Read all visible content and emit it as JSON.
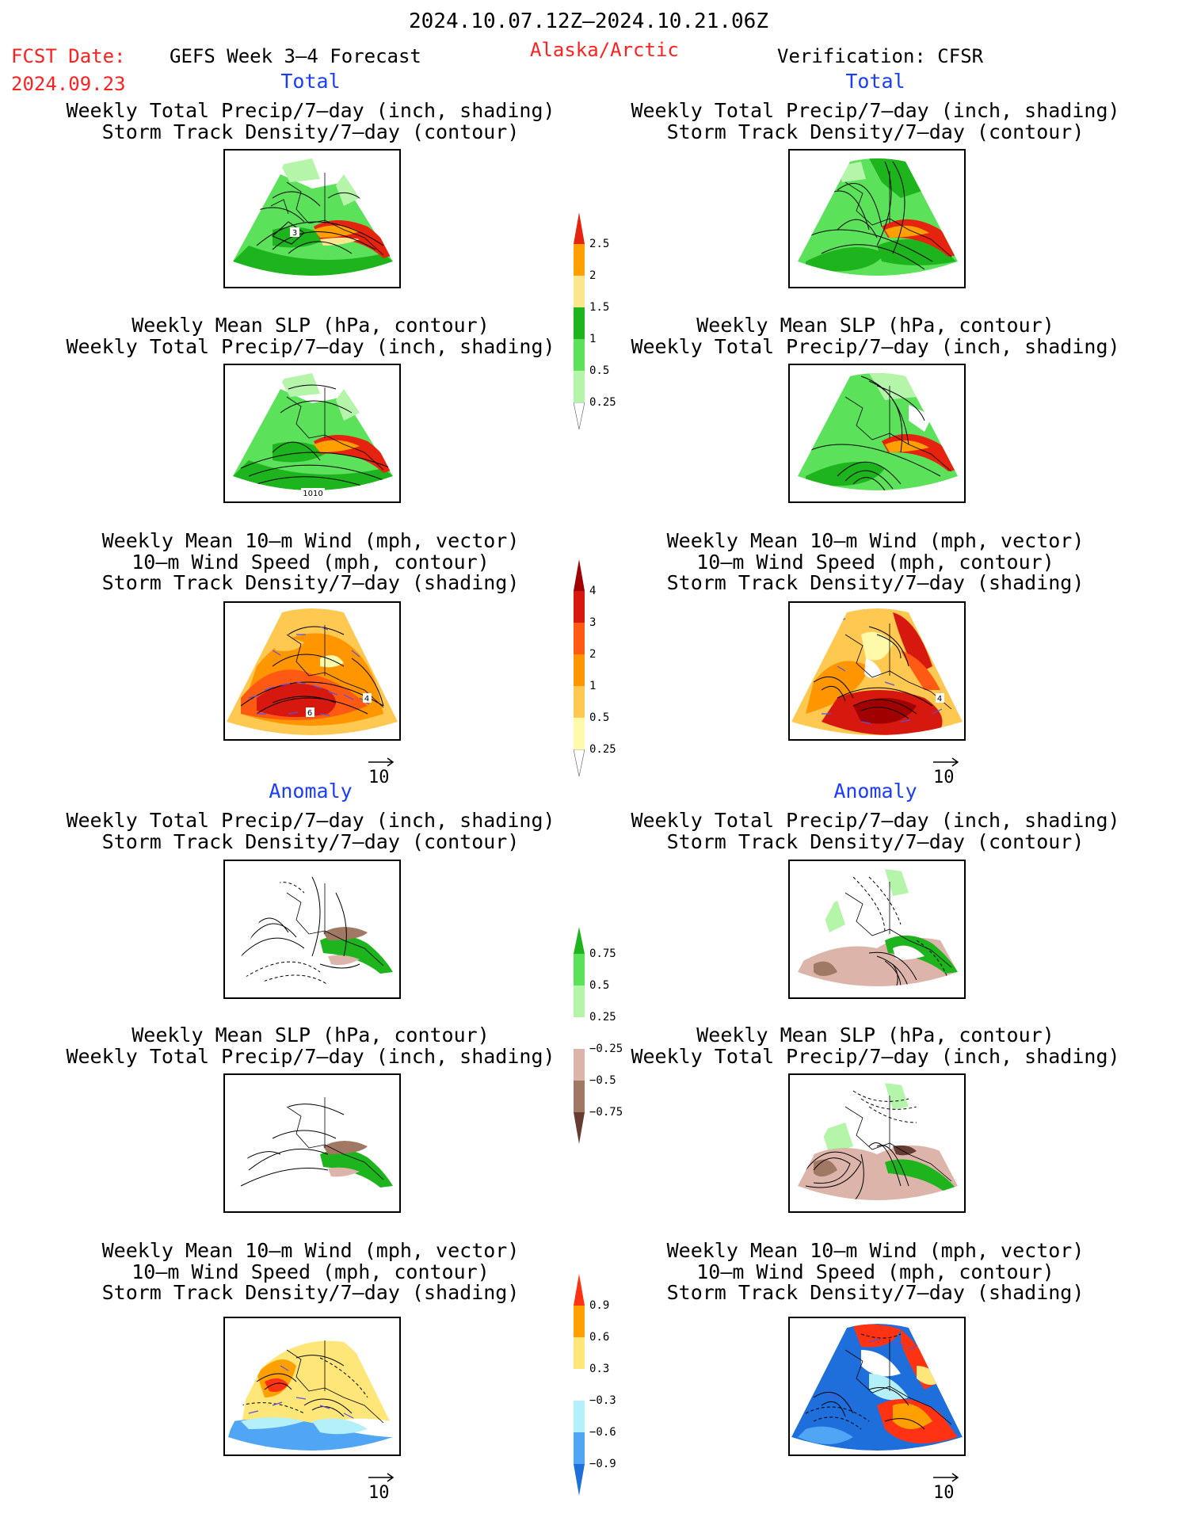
{
  "header": {
    "date_range": "2024.10.07.12Z–2024.10.21.06Z",
    "fcst_label": "FCST Date:",
    "fcst_date": "2024.09.23",
    "forecast": "GEFS Week 3–4 Forecast",
    "region": "Alaska/Arctic",
    "verification": "Verification: CFSR"
  },
  "sections": {
    "total": "Total",
    "anomaly": "Anomaly"
  },
  "titles": {
    "precip_track": [
      "Weekly Total Precip/7–day (inch, shading)",
      "Storm Track Density/7–day (contour)"
    ],
    "slp_precip": [
      "Weekly Mean SLP (hPa, contour)",
      "Weekly Total Precip/7–day (inch, shading)"
    ],
    "wind_track": [
      "Weekly Mean 10–m Wind (mph, vector)",
      "10–m Wind Speed (mph, contour)",
      "Storm Track Density/7–day (shading)"
    ]
  },
  "panel_labels": {
    "fcst_precip_track": "3",
    "fcst_slp_precip": "1010",
    "fcst_wind_a": "6",
    "fcst_wind_b": "4",
    "ver_wind_b": "4"
  },
  "vector_reference": "10",
  "colorbars": [
    {
      "name": "precip-total",
      "colors": [
        "#b4f5aa",
        "#5ce15a",
        "#1eb41e",
        "#fae68c",
        "#ffa000",
        "#e6230f"
      ],
      "labels": [
        "0.25",
        "0.5",
        "1",
        "1.5",
        "2",
        "2.5"
      ]
    },
    {
      "name": "track-total",
      "colors": [
        "#fffaaa",
        "#ffc850",
        "#ff9600",
        "#ff5a14",
        "#d7180f",
        "#a00000"
      ],
      "labels": [
        "0.25",
        "0.5",
        "1",
        "2",
        "3",
        "4"
      ]
    },
    {
      "name": "precip-anomaly",
      "colors": [
        "#643c32",
        "#a07864",
        "#dcb4aa",
        "#ffffff",
        "#b4f5aa",
        "#5ce15a",
        "#1eb41e"
      ],
      "labels": [
        "−0.75",
        "−0.5",
        "−0.25",
        "0.25",
        "0.5",
        "0.75"
      ]
    },
    {
      "name": "track-anomaly",
      "colors": [
        "#1e6edc",
        "#50a5f5",
        "#b4f0fa",
        "#ffffff",
        "#ffe678",
        "#ffa000",
        "#ff3214"
      ],
      "labels": [
        "−0.9",
        "−0.6",
        "−0.3",
        "0.3",
        "0.6",
        "0.9"
      ]
    }
  ]
}
